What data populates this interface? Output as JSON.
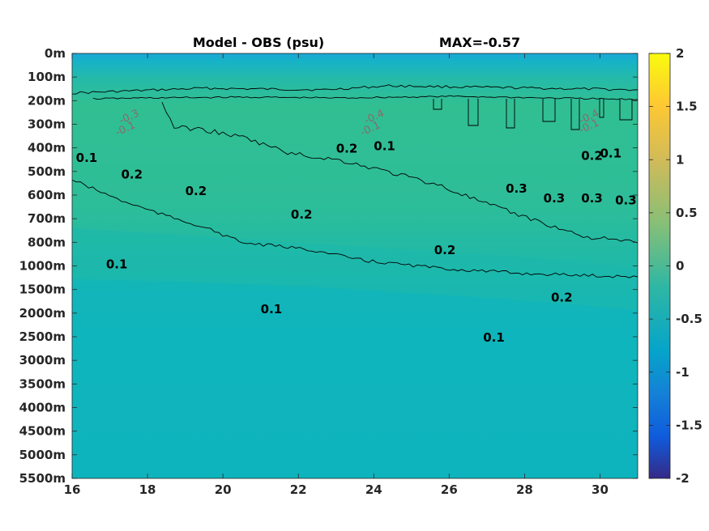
{
  "chart_data": {
    "type": "heatmap",
    "title": "Model - OBS (psu)",
    "max_label": "MAX=-0.57",
    "x_ticks": [
      "16",
      "18",
      "20",
      "22",
      "24",
      "26",
      "28",
      "30"
    ],
    "x_range": [
      16,
      31
    ],
    "y_ticks": [
      "0m",
      "100m",
      "200m",
      "300m",
      "400m",
      "500m",
      "600m",
      "700m",
      "800m",
      "1000m",
      "1500m",
      "2000m",
      "2500m",
      "3000m",
      "3500m",
      "4000m",
      "4500m",
      "5000m",
      "5500m"
    ],
    "colorbar": {
      "ticks": [
        "2",
        "1.5",
        "1",
        "0.5",
        "0",
        "-0.5",
        "-1",
        "-1.5",
        "-2"
      ],
      "range": [
        -2,
        2
      ],
      "colormap": "parula"
    },
    "contours": [
      {
        "level": "0.1",
        "x": 16.1,
        "depth_index": 4.6
      },
      {
        "level": "0.2",
        "x": 23.0,
        "depth_index": 4.2
      },
      {
        "level": "0.1",
        "x": 24.0,
        "depth_index": 4.1
      },
      {
        "level": "0.2",
        "x": 29.5,
        "depth_index": 4.5
      },
      {
        "level": "0.1",
        "x": 30.0,
        "depth_index": 4.4
      },
      {
        "level": "0.2",
        "x": 17.3,
        "depth_index": 5.3
      },
      {
        "level": "0.2",
        "x": 19.0,
        "depth_index": 6.0
      },
      {
        "level": "0.3",
        "x": 27.5,
        "depth_index": 5.9
      },
      {
        "level": "0.3",
        "x": 28.5,
        "depth_index": 6.3
      },
      {
        "level": "0.3",
        "x": 29.5,
        "depth_index": 6.3
      },
      {
        "level": "0.3",
        "x": 30.4,
        "depth_index": 6.4
      },
      {
        "level": "0.2",
        "x": 21.8,
        "depth_index": 7.0
      },
      {
        "level": "0.2",
        "x": 25.6,
        "depth_index": 8.5
      },
      {
        "level": "0.2",
        "x": 28.7,
        "depth_index": 10.5
      },
      {
        "level": "0.1",
        "x": 16.9,
        "depth_index": 9.1
      },
      {
        "level": "0.1",
        "x": 21.0,
        "depth_index": 11.0
      },
      {
        "level": "0.1",
        "x": 26.9,
        "depth_index": 12.2
      }
    ],
    "negative_contour_labels": [
      {
        "text": "-0.3",
        "x": 17.3,
        "depth_index": 3.0
      },
      {
        "text": "-0.1",
        "x": 17.2,
        "depth_index": 3.5
      },
      {
        "text": "-0.4",
        "x": 23.8,
        "depth_index": 3.0
      },
      {
        "text": "-0.1",
        "x": 23.7,
        "depth_index": 3.5
      },
      {
        "text": "-0.4",
        "x": 29.5,
        "depth_index": 3.0
      },
      {
        "text": "-0.1",
        "x": 29.5,
        "depth_index": 3.4
      }
    ]
  }
}
